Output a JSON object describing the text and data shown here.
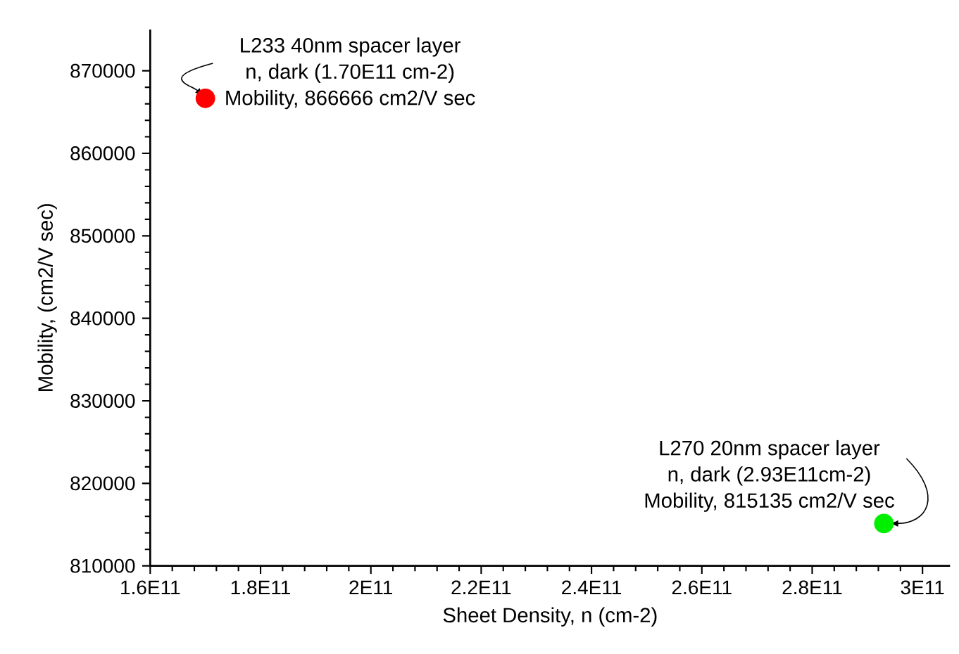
{
  "chart_data": {
    "type": "scatter",
    "xlabel": "Sheet Density, n (cm-2)",
    "ylabel": "Mobility, (cm2/V sec)",
    "series": [
      {
        "color": "#ff0000",
        "x": [
          170000000000.0
        ],
        "values": [
          866666
        ]
      },
      {
        "color": "#00ee00",
        "x": [
          293000000000.0
        ],
        "values": [
          815135
        ]
      }
    ],
    "xlim": [
      160000000000.0,
      305000000000.0
    ],
    "xticks": [
      {
        "value": 160000000000.0,
        "label": "1.6E11"
      },
      {
        "value": 180000000000.0,
        "label": "1.8E11"
      },
      {
        "value": 200000000000.0,
        "label": "2E11"
      },
      {
        "value": 220000000000.0,
        "label": "2.2E11"
      },
      {
        "value": 240000000000.0,
        "label": "2.4E11"
      },
      {
        "value": 260000000000.0,
        "label": "2.6E11"
      },
      {
        "value": 280000000000.0,
        "label": "2.8E11"
      },
      {
        "value": 300000000000.0,
        "label": "3E11"
      }
    ],
    "ylim": [
      810000,
      875000
    ],
    "yticks": [
      810000,
      820000,
      830000,
      840000,
      850000,
      860000,
      870000
    ],
    "marker": "circle",
    "grid": false,
    "annotations": [
      "L233 40nm spacer layer",
      "n, dark (1.70E11 cm-2)",
      {
        "text": "Mobility, 866666 cm2/V sec",
        "x": 170000000000.0,
        "y": 866666
      },
      "L270 20nm spacer layer",
      "n, dark (2.93E11cm-2)",
      {
        "text": "Mobility, 815135 cm2/V sec",
        "x": 293000000000.0,
        "y": 815135
      }
    ]
  }
}
